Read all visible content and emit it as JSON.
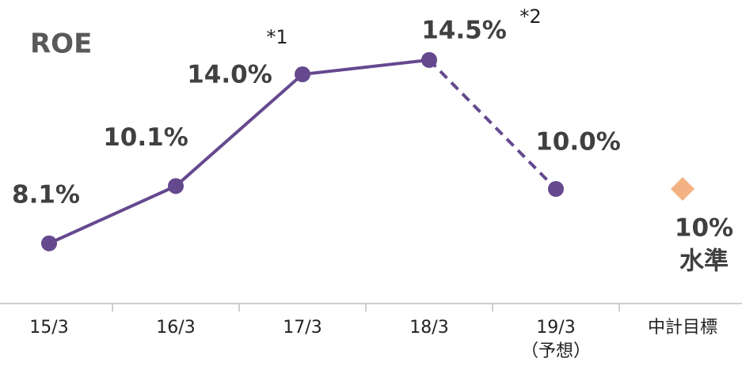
{
  "chart_data": {
    "type": "line",
    "title": "ROE",
    "categories": [
      "15/3",
      "16/3",
      "17/3",
      "18/3",
      "19/3",
      "中計目標"
    ],
    "category_sublabels": [
      null,
      null,
      null,
      null,
      "（予想）",
      null
    ],
    "series": [
      {
        "name": "ROE",
        "color": "#65498f",
        "values": [
          8.1,
          10.1,
          14.0,
          14.5,
          10.0,
          null
        ],
        "value_labels": [
          "8.1%",
          "10.1%",
          "14.0%",
          "14.5%",
          "10.0%",
          null
        ],
        "footnote_marks": [
          null,
          null,
          "*1",
          "*2",
          null,
          null
        ],
        "dash_from_index": 3
      }
    ],
    "target": {
      "value": 10,
      "value_label": "10%",
      "note": "水準",
      "color": "#f4b183"
    },
    "ylim": [
      6,
      16
    ]
  }
}
